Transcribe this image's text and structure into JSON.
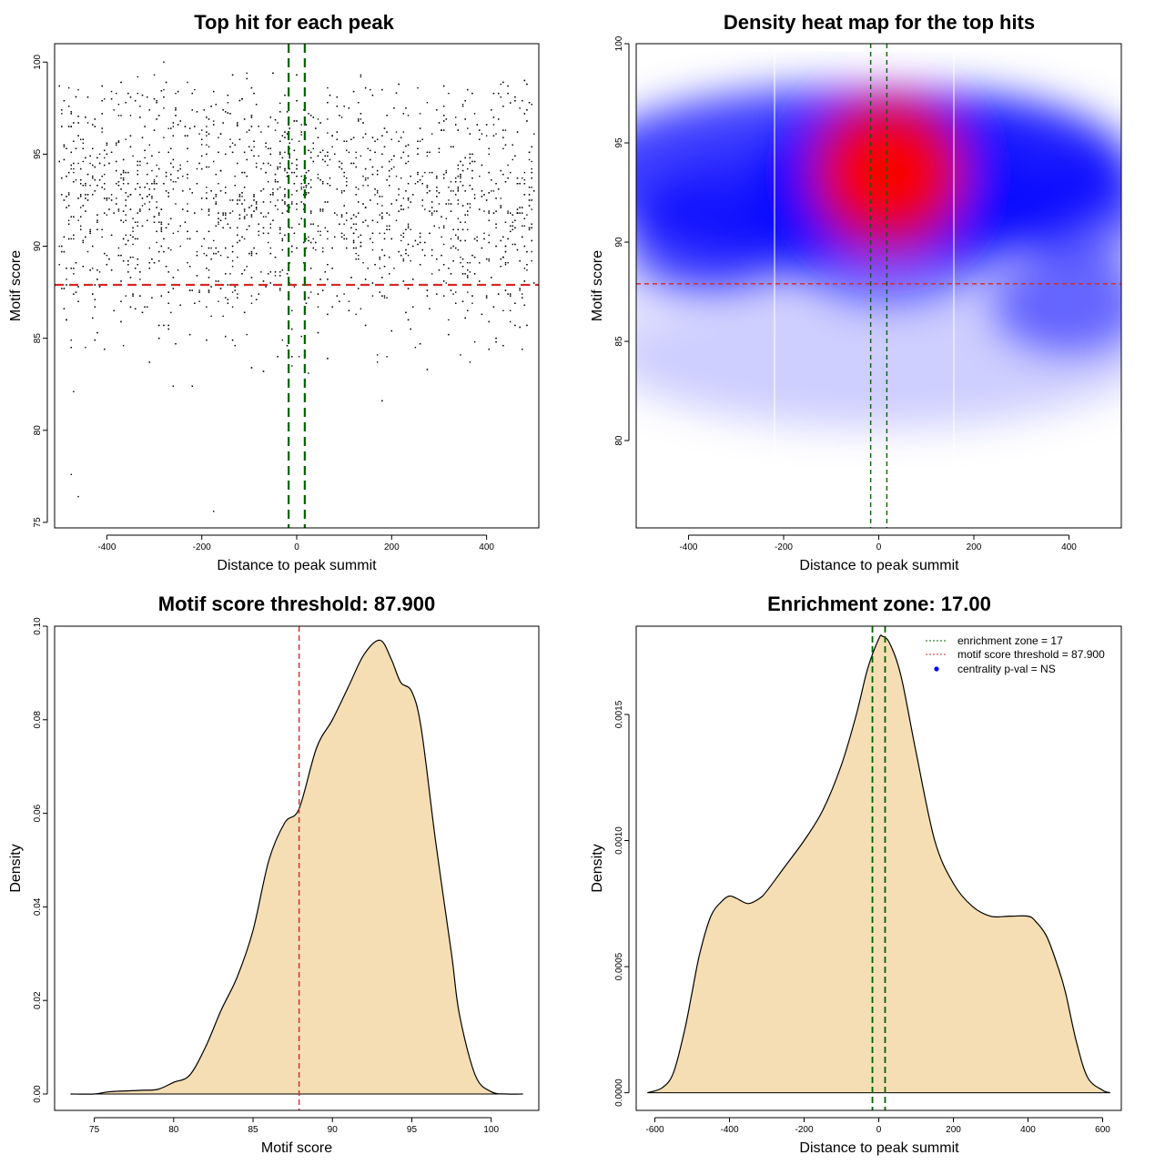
{
  "chart_data": [
    {
      "type": "scatter",
      "title": "Top hit for each peak",
      "xlabel": "Distance to peak summit",
      "ylabel": "Motif score",
      "xlim": [
        -510,
        510
      ],
      "ylim": [
        74.7,
        101
      ],
      "xticks": [
        -400,
        -200,
        0,
        200,
        400
      ],
      "yticks": [
        75,
        80,
        85,
        90,
        95,
        100
      ],
      "hline": {
        "y": 87.9,
        "color": "#d62728"
      },
      "vlines": {
        "x": [
          -17,
          17
        ],
        "color": "#006400"
      },
      "point_color": "#000000",
      "points_note": "~3000 points, uniform in x over [-500, 500], motif score roughly 76–100 with mode near 93",
      "extreme_points": [
        {
          "x": -280,
          "y": 100
        },
        {
          "x": -460,
          "y": 76.4
        },
        {
          "x": -175,
          "y": 75.6
        },
        {
          "x": -475,
          "y": 77.6
        }
      ]
    },
    {
      "type": "heatmap",
      "title": "Density heat map for the top hits",
      "xlabel": "Distance to peak summit",
      "ylabel": "Motif score",
      "xlim": [
        -510,
        510
      ],
      "ylim": [
        75.6,
        100
      ],
      "xticks": [
        -400,
        -200,
        0,
        200,
        400
      ],
      "yticks": [
        80,
        85,
        90,
        95,
        100
      ],
      "hline": {
        "y": 87.9,
        "color": "#d62728"
      },
      "vlines": {
        "x": [
          -17,
          17
        ],
        "color": "#006400"
      },
      "colors": [
        "#ffffff",
        "#0000ff",
        "#ff0000"
      ],
      "hot_spot": {
        "x": 20,
        "y": 93.5
      },
      "secondary_spots": [
        {
          "x": -380,
          "y": 90
        },
        {
          "x": 420,
          "y": 91.5
        },
        {
          "x": 400,
          "y": 87
        }
      ]
    },
    {
      "type": "area",
      "title": "Motif score threshold: 87.900",
      "xlabel": "Motif score",
      "ylabel": "Density",
      "xlim": [
        72.5,
        103
      ],
      "ylim": [
        -0.0035,
        0.1
      ],
      "xticks": [
        75,
        80,
        85,
        90,
        95,
        100
      ],
      "yticks": [
        0.0,
        0.02,
        0.04,
        0.06,
        0.08,
        0.1
      ],
      "ytick_labels": [
        "0.00",
        "0.02",
        "0.04",
        "0.06",
        "0.08",
        "0.10"
      ],
      "vline": {
        "x": 87.9,
        "color": "#d62728"
      },
      "fill": "#f5deb3",
      "x": [
        73.5,
        75,
        76,
        78,
        79,
        80,
        81,
        82,
        83,
        84,
        85,
        86,
        87,
        87.9,
        89,
        90,
        91,
        92,
        93,
        93.7,
        94.3,
        95,
        95.6,
        96.5,
        97.5,
        98,
        99,
        100,
        101,
        102
      ],
      "y": [
        0.0,
        0.0,
        0.0005,
        0.0008,
        0.001,
        0.0025,
        0.004,
        0.01,
        0.018,
        0.025,
        0.035,
        0.05,
        0.058,
        0.061,
        0.074,
        0.08,
        0.087,
        0.094,
        0.097,
        0.093,
        0.088,
        0.086,
        0.078,
        0.054,
        0.03,
        0.017,
        0.004,
        0.0005,
        0.0,
        0.0
      ]
    },
    {
      "type": "area",
      "title": "Enrichment zone: 17.00",
      "xlabel": "Distance to peak summit",
      "ylabel": "Density",
      "xlim": [
        -650,
        650
      ],
      "ylim": [
        -7e-05,
        0.00185
      ],
      "xticks": [
        -600,
        -400,
        -200,
        0,
        200,
        400,
        600
      ],
      "yticks": [
        0.0,
        0.0005,
        0.001,
        0.0015
      ],
      "ytick_labels": [
        "0.0000",
        "0.0005",
        "0.0010",
        "0.0015"
      ],
      "vlines": {
        "x": [
          -17,
          17
        ],
        "color": "#006400"
      },
      "fill": "#f5deb3",
      "x": [
        -620,
        -580,
        -550,
        -520,
        -500,
        -480,
        -450,
        -420,
        -400,
        -380,
        -350,
        -320,
        -300,
        -250,
        -200,
        -150,
        -100,
        -60,
        -30,
        0,
        10,
        30,
        60,
        100,
        150,
        200,
        250,
        300,
        350,
        400,
        420,
        450,
        480,
        500,
        530,
        560,
        600,
        620
      ],
      "y": [
        0.0,
        2e-05,
        8e-05,
        0.00025,
        0.0004,
        0.00055,
        0.0007,
        0.00076,
        0.00078,
        0.00077,
        0.00075,
        0.00077,
        0.0008,
        0.0009,
        0.001,
        0.00112,
        0.0013,
        0.0015,
        0.00168,
        0.0018,
        0.00181,
        0.00178,
        0.00165,
        0.00135,
        0.001,
        0.00083,
        0.00074,
        0.0007,
        0.0007,
        0.0007,
        0.00068,
        0.00062,
        0.0005,
        0.0004,
        0.0002,
        6e-05,
        1e-05,
        0.0
      ],
      "legend": {
        "position": "top-right",
        "items": [
          {
            "label": "enrichment zone = 17",
            "color": "#006400",
            "style": "dotted-line"
          },
          {
            "label": "motif score threshold = 87.900",
            "color": "#d62728",
            "style": "dotted-line"
          },
          {
            "label": "centrality p-val = NS",
            "color": "#0000ff",
            "style": "dot"
          }
        ]
      }
    }
  ]
}
